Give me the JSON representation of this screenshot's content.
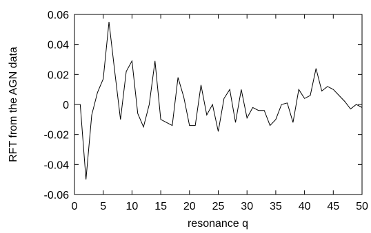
{
  "chart_data": {
    "type": "line",
    "xlabel": "resonance q",
    "ylabel": "RFT from the AGN data",
    "xlim": [
      0,
      50
    ],
    "ylim": [
      -0.06,
      0.06
    ],
    "xticks": [
      0,
      5,
      10,
      15,
      20,
      25,
      30,
      35,
      40,
      45,
      50
    ],
    "yticks": [
      -0.06,
      -0.04,
      -0.02,
      0,
      0.02,
      0.04,
      0.06
    ],
    "ytick_labels": [
      "-0.06",
      "-0.04",
      "-0.02",
      "0",
      "0.02",
      "0.04",
      "0.06"
    ],
    "grid": false,
    "series": [
      {
        "color": "#000000",
        "x": [
          0,
          1,
          2,
          3,
          4,
          5,
          6,
          7,
          8,
          9,
          10,
          11,
          12,
          13,
          14,
          15,
          16,
          17,
          18,
          19,
          20,
          21,
          22,
          23,
          24,
          25,
          26,
          27,
          28,
          29,
          30,
          31,
          32,
          33,
          34,
          35,
          36,
          37,
          38,
          39,
          40,
          41,
          42,
          43,
          44,
          45,
          46,
          47,
          48,
          49,
          50
        ],
        "y": [
          0.0,
          0.0,
          -0.05,
          -0.007,
          0.008,
          0.017,
          0.055,
          0.022,
          -0.01,
          0.022,
          0.029,
          -0.006,
          -0.015,
          0.0,
          0.029,
          -0.01,
          -0.012,
          -0.014,
          0.018,
          0.005,
          -0.014,
          -0.014,
          0.013,
          -0.007,
          0.0,
          -0.018,
          0.004,
          0.01,
          -0.012,
          0.01,
          -0.009,
          -0.002,
          -0.004,
          -0.004,
          -0.014,
          -0.01,
          0.0,
          0.001,
          -0.012,
          0.01,
          0.004,
          0.006,
          0.024,
          0.009,
          0.012,
          0.01,
          0.006,
          0.002,
          -0.003,
          0.0,
          -0.002
        ]
      }
    ]
  }
}
